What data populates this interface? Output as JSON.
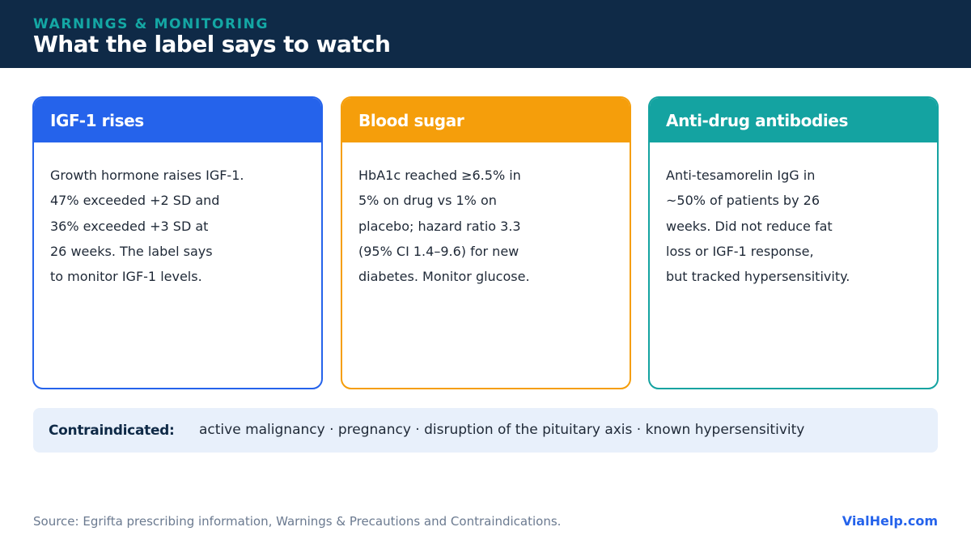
{
  "header": {
    "eyebrow": "WARNINGS & MONITORING",
    "title": "What the label says to watch"
  },
  "cards": [
    {
      "title": "IGF-1 rises",
      "color": "#2563eb",
      "lines": [
        "Growth hormone raises IGF-1.",
        "47% exceeded +2 SD and",
        "36% exceeded +3 SD at",
        "26 weeks. The label says",
        "to monitor IGF-1 levels."
      ]
    },
    {
      "title": "Blood sugar",
      "color": "#f59e0b",
      "lines": [
        "HbA1c reached ≥6.5% in",
        "5% on drug vs 1% on",
        "placebo; hazard ratio 3.3",
        "(95% CI 1.4–9.6) for new",
        "diabetes. Monitor glucose."
      ]
    },
    {
      "title": "Anti-drug antibodies",
      "color": "#14a3a1",
      "lines": [
        "Anti-tesamorelin IgG in",
        "~50% of patients by 26",
        "weeks. Did not reduce fat",
        "loss or IGF-1 response,",
        "but tracked hypersensitivity."
      ]
    }
  ],
  "contraindications": {
    "label": "Contraindicated:",
    "text": "active malignancy · pregnancy · disruption of the pituitary axis · known hypersensitivity"
  },
  "footer": {
    "source": "Source: Egrifta prescribing information, Warnings & Precautions and Contraindications.",
    "brand": "VialHelp.com"
  }
}
